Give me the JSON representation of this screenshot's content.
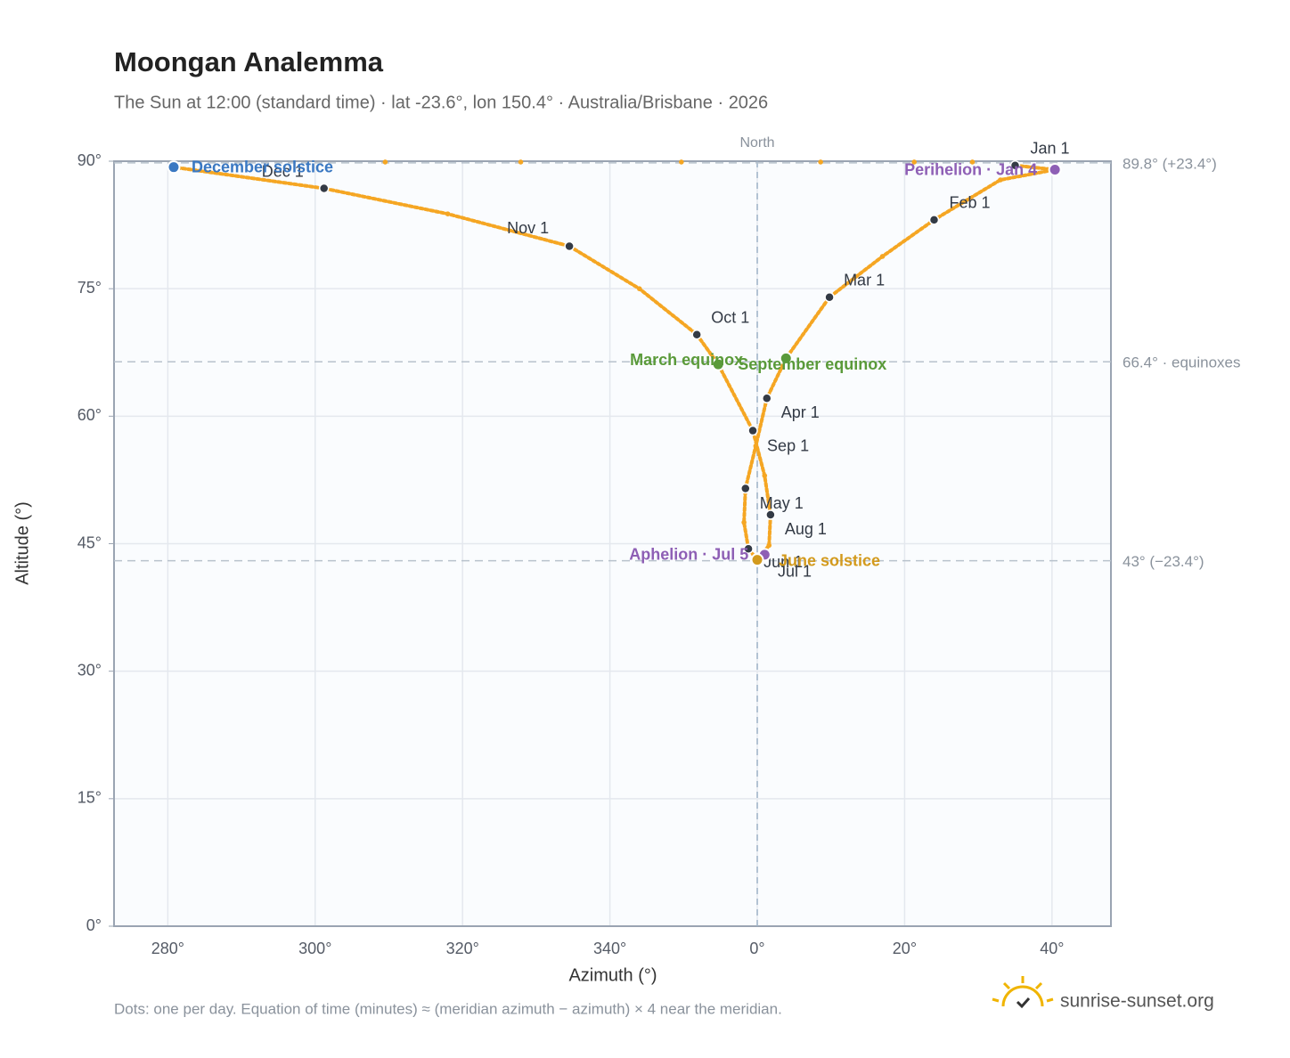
{
  "chart_data": {
    "type": "scatter",
    "title": "Moongan Analemma",
    "subtitle": "The Sun at 12:00 (standard time) · lat -23.6°, lon 150.4° · Australia/Brisbane · 2026",
    "xlabel": "Azimuth (°)",
    "ylabel": "Altitude (°)",
    "xlim": [
      272.7,
      48
    ],
    "ylim": [
      0,
      90
    ],
    "xticks": [
      {
        "value": 280,
        "label": "280°"
      },
      {
        "value": 300,
        "label": "300°"
      },
      {
        "value": 320,
        "label": "320°"
      },
      {
        "value": 340,
        "label": "340°"
      },
      {
        "value": 0,
        "label": "0°"
      },
      {
        "value": 20,
        "label": "20°"
      },
      {
        "value": 40,
        "label": "40°"
      }
    ],
    "yticks": [
      {
        "value": 0,
        "label": "0°"
      },
      {
        "value": 15,
        "label": "15°"
      },
      {
        "value": 30,
        "label": "30°"
      },
      {
        "value": 45,
        "label": "45°"
      },
      {
        "value": 60,
        "label": "60°"
      },
      {
        "value": 75,
        "label": "75°"
      },
      {
        "value": 90,
        "label": "90°"
      }
    ],
    "grid": true,
    "curve": {
      "color": "#f5a623",
      "x": [
        35.0,
        40.4,
        33.0,
        24.0,
        17.0,
        9.8,
        3.9,
        1.3,
        359.8,
        358.4,
        358.2,
        358.8,
        0.0,
        1.6,
        1.8,
        1.0,
        359.4,
        354.7,
        351.8,
        344.0,
        334.5,
        318.0,
        301.2,
        280.8
      ],
      "y": [
        89.5,
        89.0,
        87.8,
        83.1,
        78.8,
        74.0,
        66.8,
        62.1,
        56.5,
        51.5,
        47.5,
        44.4,
        43.1,
        44.8,
        48.4,
        53.0,
        58.3,
        66.1,
        69.6,
        75.0,
        80.0,
        83.8,
        86.8,
        89.3
      ]
    },
    "zenith": {
      "color": "#f5a623",
      "x": [
        309.5,
        327.9,
        349.7,
        8.6,
        21.3,
        29.2
      ],
      "y": [
        89.9,
        89.9,
        89.9,
        89.9,
        89.9,
        89.9
      ]
    },
    "months": {
      "color": "#333a45",
      "labels": [
        "Jan 1",
        "Feb 1",
        "Mar 1",
        "Apr 1",
        "May 1",
        "Jun 1",
        "Jul 1",
        "Aug 1",
        "Sep 1",
        "Oct 1",
        "Nov 1",
        "Dec 1"
      ],
      "x": [
        35.0,
        24.0,
        9.8,
        1.3,
        358.4,
        358.8,
        0.0,
        1.8,
        359.4,
        351.8,
        334.5,
        301.2
      ],
      "y": [
        89.5,
        83.1,
        74.0,
        62.1,
        51.5,
        44.4,
        43.1,
        48.4,
        58.3,
        69.6,
        80.0,
        86.8
      ]
    },
    "events": [
      {
        "label": "December solstice",
        "x": 280.8,
        "y": 89.3,
        "color": "#3a78c2"
      },
      {
        "label": "Perihelion · Jan 4",
        "x": 40.4,
        "y": 89.0,
        "color": "#8e5fb5"
      },
      {
        "label": "March equinox",
        "x": 354.7,
        "y": 66.1,
        "color": "#5a9a3a"
      },
      {
        "label": "September equinox",
        "x": 3.9,
        "y": 66.8,
        "color": "#5a9a3a"
      },
      {
        "label": "Aphelion · Jul 5",
        "x": 1.0,
        "y": 43.7,
        "color": "#8e5fb5"
      },
      {
        "label": "June solstice",
        "x": 0.0,
        "y": 43.1,
        "color": "#d39a1d"
      }
    ],
    "reference_lines": [
      {
        "value": 89.8,
        "label": "89.8° (+23.4°)"
      },
      {
        "value": 66.4,
        "label": "66.4° · equinoxes"
      },
      {
        "value": 43,
        "label": "43° (−23.4°)"
      }
    ],
    "north": {
      "value": 0,
      "label": "North"
    },
    "footnote": "Dots: one per day. Equation of time (minutes) ≈ (meridian azimuth − azimuth) × 4 near the meridian.",
    "brand": "sunrise-sunset.org"
  }
}
